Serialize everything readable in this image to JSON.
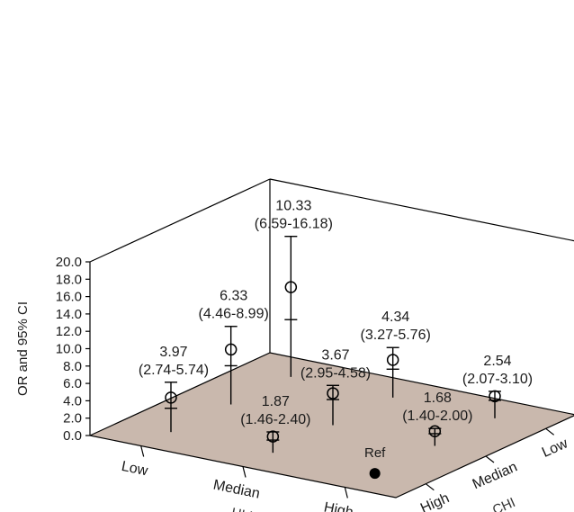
{
  "chart_data": {
    "type": "scatter",
    "subtype": "3d-errorbar",
    "ylabel": "OR and 95% CI",
    "ylim": [
      0,
      20
    ],
    "yticks": [
      "0.0",
      "2.0",
      "4.0",
      "6.0",
      "8.0",
      "10.0",
      "12.0",
      "14.0",
      "16.0",
      "18.0",
      "20.0"
    ],
    "x_axis": {
      "label": "HLI",
      "categories": [
        "Low",
        "Median",
        "High"
      ]
    },
    "z_axis": {
      "label": "CHI",
      "categories": [
        "High",
        "Median",
        "Low"
      ]
    },
    "floor_color": "#c9b8ad",
    "points": [
      {
        "hli": "Low",
        "chi": "High",
        "or": 3.97,
        "lo": 2.74,
        "hi": 5.74,
        "label1": "3.97",
        "label2": "(2.74-5.74)"
      },
      {
        "hli": "Low",
        "chi": "Median",
        "or": 6.33,
        "lo": 4.46,
        "hi": 8.99,
        "label1": "6.33",
        "label2": "(4.46-8.99)"
      },
      {
        "hli": "Low",
        "chi": "Low",
        "or": 10.33,
        "lo": 6.59,
        "hi": 16.18,
        "label1": "10.33",
        "label2": "(6.59-16.18)"
      },
      {
        "hli": "Median",
        "chi": "High",
        "or": 1.87,
        "lo": 1.46,
        "hi": 2.4,
        "label1": "1.87",
        "label2": "(1.46-2.40)"
      },
      {
        "hli": "Median",
        "chi": "Median",
        "or": 3.67,
        "lo": 2.95,
        "hi": 4.58,
        "label1": "3.67",
        "label2": "(2.95-4.58)"
      },
      {
        "hli": "Median",
        "chi": "Low",
        "or": 4.34,
        "lo": 3.27,
        "hi": 5.76,
        "label1": "4.34",
        "label2": "(3.27-5.76)"
      },
      {
        "hli": "High",
        "chi": "High",
        "or": null,
        "lo": null,
        "hi": null,
        "label1": "Ref",
        "label2": "",
        "reference": true
      },
      {
        "hli": "High",
        "chi": "Median",
        "or": 1.68,
        "lo": 1.4,
        "hi": 2.0,
        "label1": "1.68",
        "label2": "(1.40-2.00)"
      },
      {
        "hli": "High",
        "chi": "Low",
        "or": 2.54,
        "lo": 2.07,
        "hi": 3.1,
        "label1": "2.54",
        "label2": "(2.07-3.10)"
      }
    ]
  }
}
